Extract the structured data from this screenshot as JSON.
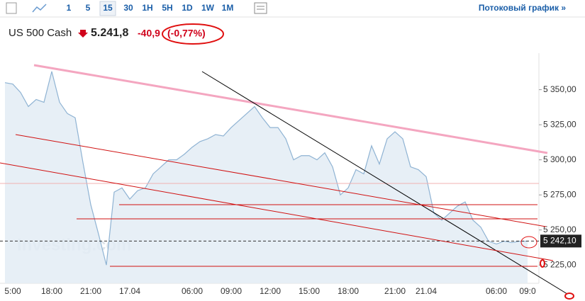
{
  "toolbar": {
    "intervals": [
      "1",
      "5",
      "15",
      "30",
      "1H",
      "5H",
      "1D",
      "1W",
      "1M"
    ],
    "selected": "15",
    "stream_link": "Потоковый график »"
  },
  "header": {
    "instrument": "US 500 Cash",
    "price": "5.241,8",
    "change": "-40,9",
    "change_percent": "(-0,77%)"
  },
  "chart_data": {
    "type": "area",
    "watermark": "Investing.com",
    "categories": [
      null,
      "5:00",
      null,
      null,
      null,
      null,
      "18:00",
      null,
      null,
      null,
      null,
      "21:00",
      null,
      null,
      null,
      null,
      "17.04",
      null,
      null,
      null,
      null,
      null,
      null,
      null,
      "06:00",
      null,
      null,
      null,
      null,
      "09:00",
      null,
      null,
      null,
      null,
      "12:00",
      null,
      null,
      null,
      null,
      "15:00",
      null,
      null,
      null,
      null,
      "18:00",
      null,
      null,
      null,
      null,
      null,
      "21:00",
      null,
      null,
      null,
      "21.04",
      null,
      null,
      null,
      null,
      null,
      null,
      null,
      null,
      "06:00",
      null,
      null,
      null,
      "09:0"
    ],
    "series": [
      {
        "name": "US 500 Cash",
        "color": "#8fb3d3",
        "values": [
          5355,
          5354,
          5348,
          5338,
          5343,
          5341,
          5363,
          5341,
          5333,
          5330,
          5298,
          5268,
          5247,
          5225,
          5277,
          5280,
          5272,
          5278,
          5280,
          5290,
          5295,
          5300,
          5300,
          5304,
          5309,
          5313,
          5315,
          5318,
          5317,
          5323,
          5328,
          5333,
          5338,
          5330,
          5323,
          5323,
          5315,
          5300,
          5303,
          5303,
          5300,
          5305,
          5295,
          5275,
          5280,
          5293,
          5290,
          5310,
          5297,
          5315,
          5320,
          5315,
          5295,
          5293,
          5288,
          5262,
          5257,
          5262,
          5267,
          5270,
          5257,
          5252,
          5242,
          5240,
          5242,
          5241,
          5242,
          5242
        ]
      }
    ],
    "ylim": [
      5212,
      5371
    ],
    "yticks": [
      {
        "value": 5225,
        "label": "5 225,00"
      },
      {
        "value": 5250,
        "label": "5 250,00"
      },
      {
        "value": 5275,
        "label": "5 275,00"
      },
      {
        "value": 5300,
        "label": "5 300,00"
      },
      {
        "value": 5325,
        "label": "5 325,00"
      },
      {
        "value": 5350,
        "label": "5 350,00"
      }
    ],
    "last_price": {
      "value": 5242.1,
      "label": "5 242,10"
    }
  }
}
